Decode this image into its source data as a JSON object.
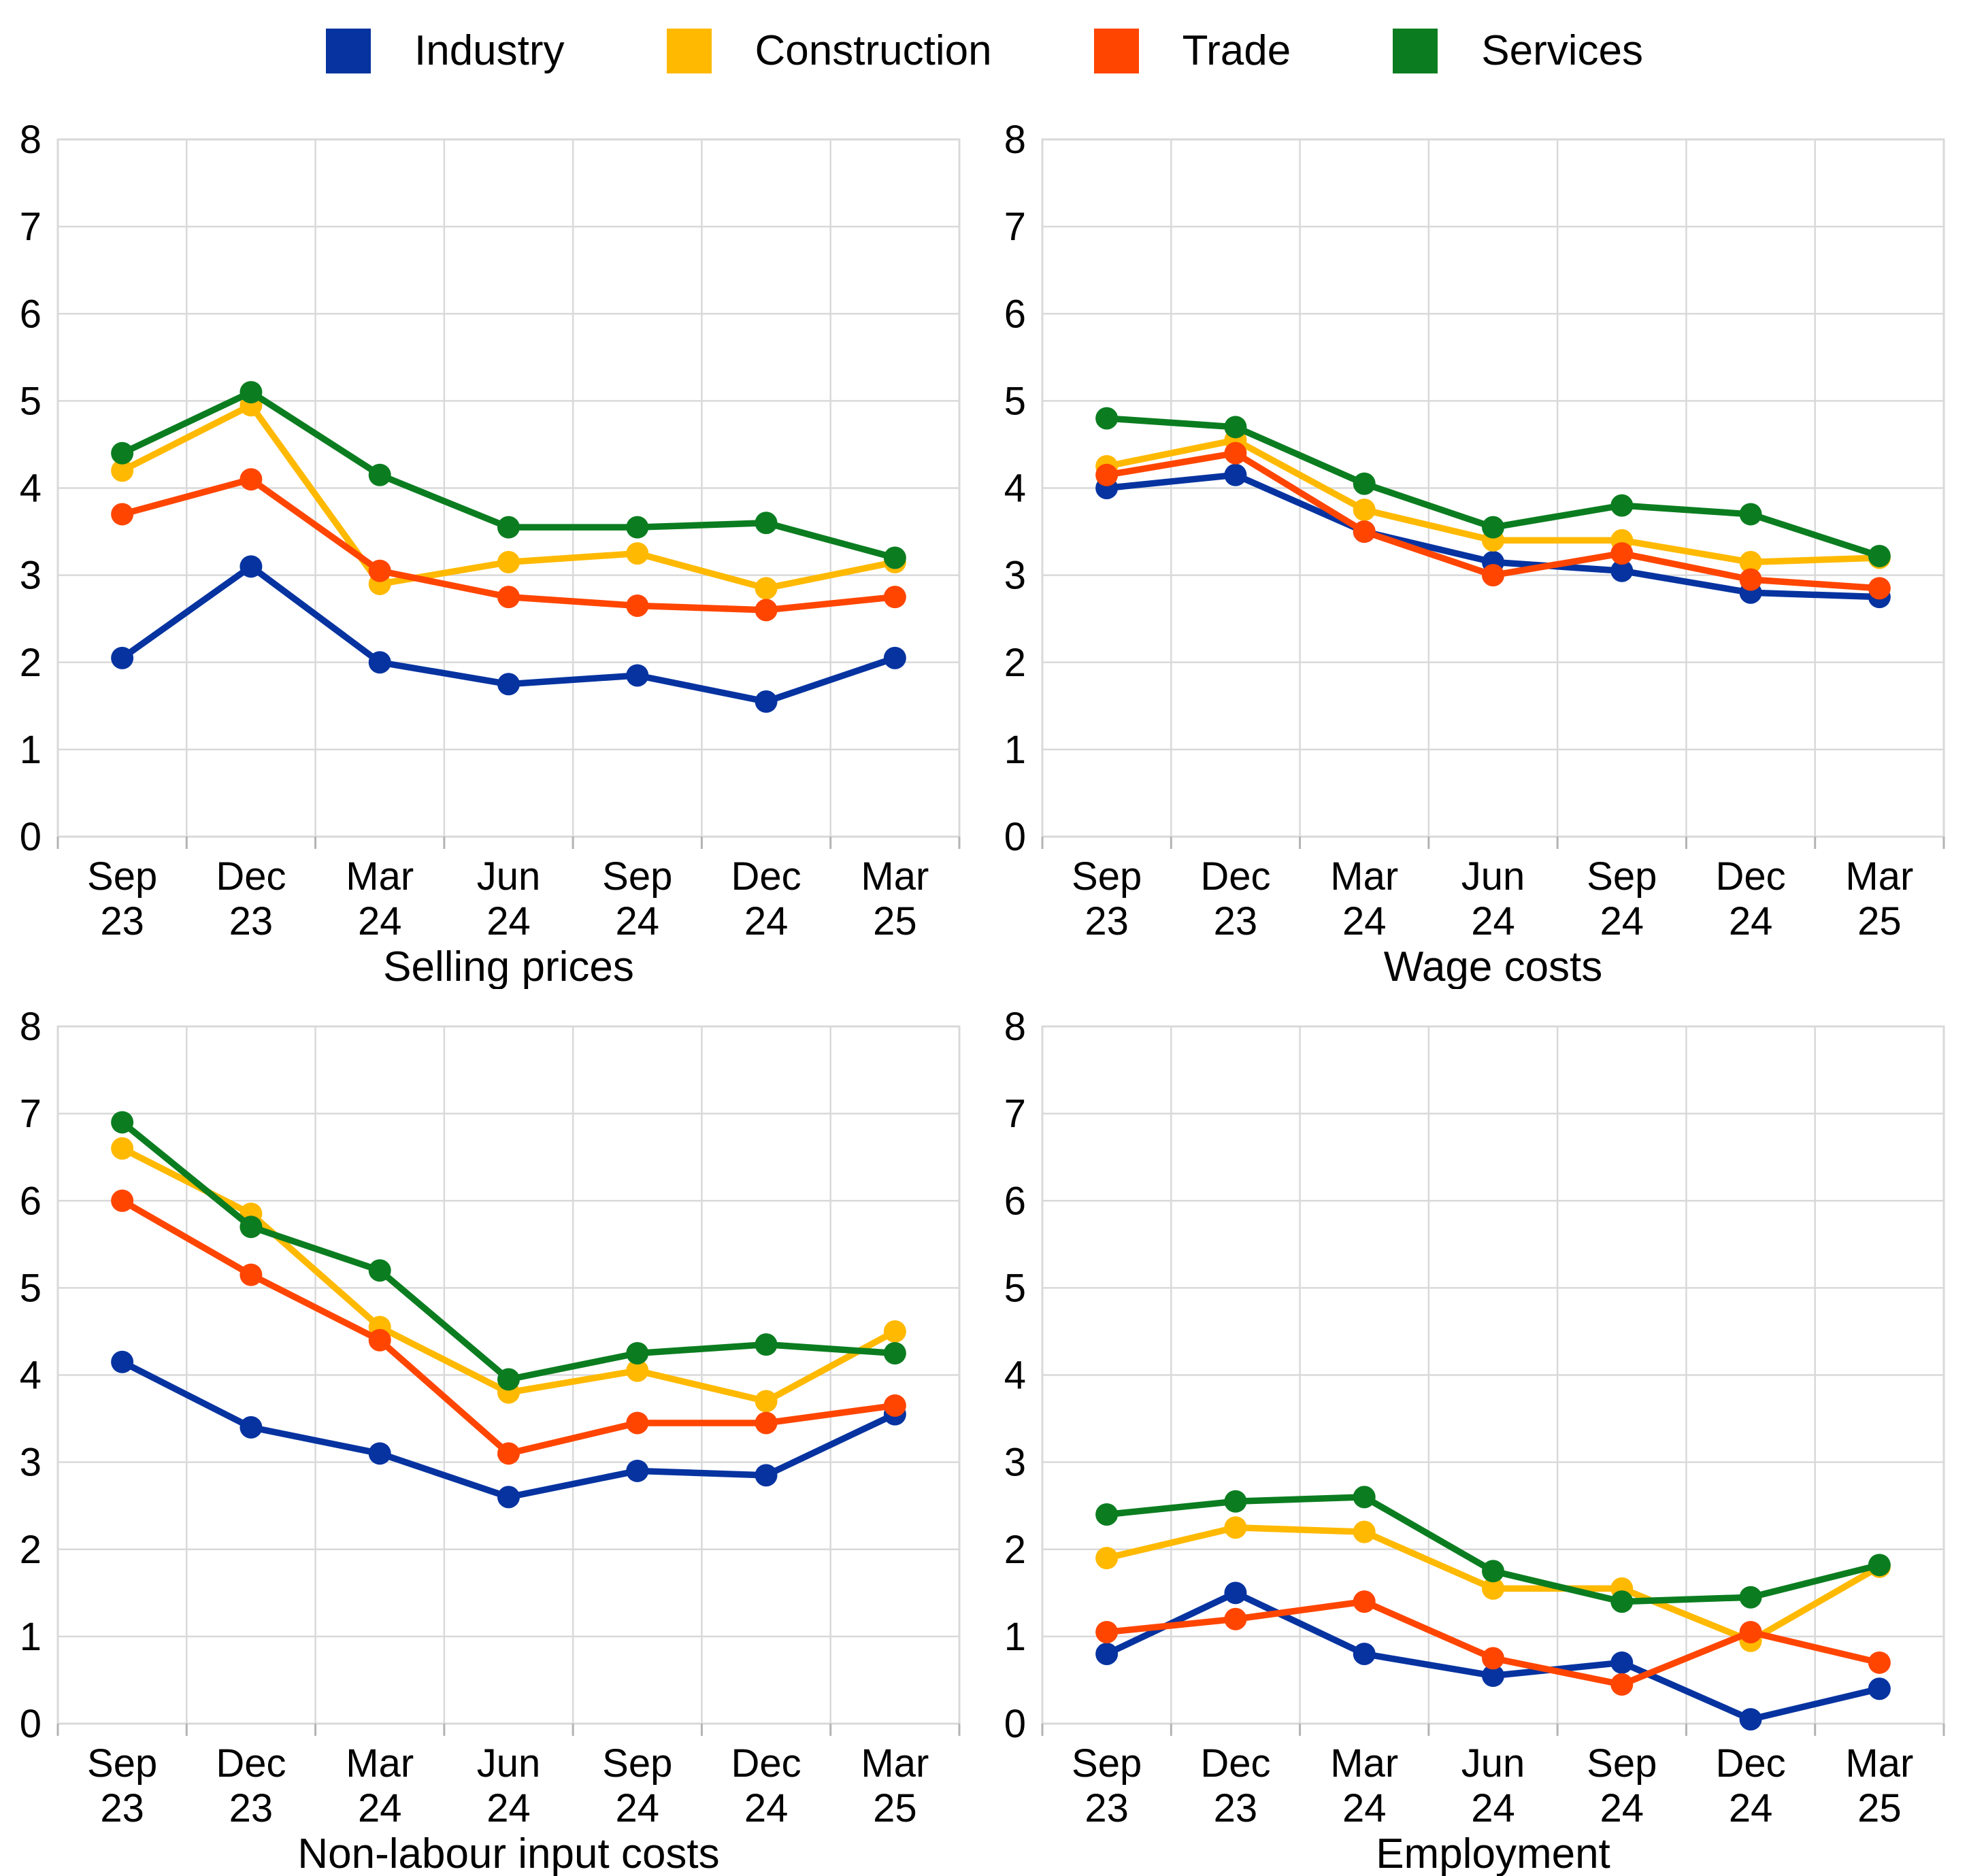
{
  "legend": {
    "items": [
      {
        "label": "Industry",
        "color": "#0633A0"
      },
      {
        "label": "Construction",
        "color": "#FFB900"
      },
      {
        "label": "Trade",
        "color": "#FF4500"
      },
      {
        "label": "Services",
        "color": "#0B7D20"
      }
    ]
  },
  "colors": {
    "background": "#ffffff",
    "grid": "#d9d9d9",
    "axis_tick": "#b3b3b3",
    "text": "#000000"
  },
  "chart_data": [
    {
      "type": "line",
      "title": "Selling prices",
      "categories": [
        "Sep 23",
        "Dec 23",
        "Mar 24",
        "Jun 24",
        "Sep 24",
        "Dec 24",
        "Mar 25"
      ],
      "ylim": [
        0,
        8
      ],
      "ytick_step": 1,
      "grid": true,
      "legend_position": "top-shared",
      "series": [
        {
          "name": "Industry",
          "values": [
            2.05,
            3.1,
            2.0,
            1.75,
            1.85,
            1.55,
            2.05
          ]
        },
        {
          "name": "Construction",
          "values": [
            4.2,
            4.95,
            2.9,
            3.15,
            3.25,
            2.85,
            3.15
          ]
        },
        {
          "name": "Trade",
          "values": [
            3.7,
            4.1,
            3.05,
            2.75,
            2.65,
            2.6,
            2.75
          ]
        },
        {
          "name": "Services",
          "values": [
            4.4,
            5.1,
            4.15,
            3.55,
            3.55,
            3.6,
            3.2
          ]
        }
      ]
    },
    {
      "type": "line",
      "title": "Wage costs",
      "categories": [
        "Sep 23",
        "Dec 23",
        "Mar 24",
        "Jun 24",
        "Sep 24",
        "Dec 24",
        "Mar 25"
      ],
      "ylim": [
        0,
        8
      ],
      "ytick_step": 1,
      "grid": true,
      "legend_position": "top-shared",
      "series": [
        {
          "name": "Industry",
          "values": [
            4.0,
            4.15,
            3.5,
            3.15,
            3.05,
            2.8,
            2.75
          ]
        },
        {
          "name": "Construction",
          "values": [
            4.25,
            4.55,
            3.75,
            3.4,
            3.4,
            3.15,
            3.2
          ]
        },
        {
          "name": "Trade",
          "values": [
            4.15,
            4.4,
            3.5,
            3.0,
            3.25,
            2.95,
            2.85
          ]
        },
        {
          "name": "Services",
          "values": [
            4.8,
            4.7,
            4.05,
            3.55,
            3.8,
            3.7,
            3.22
          ]
        }
      ]
    },
    {
      "type": "line",
      "title": "Non-labour input costs",
      "categories": [
        "Sep 23",
        "Dec 23",
        "Mar 24",
        "Jun 24",
        "Sep 24",
        "Dec 24",
        "Mar 25"
      ],
      "ylim": [
        0,
        8
      ],
      "ytick_step": 1,
      "grid": true,
      "legend_position": "top-shared",
      "series": [
        {
          "name": "Industry",
          "values": [
            4.15,
            3.4,
            3.1,
            2.6,
            2.9,
            2.85,
            3.55
          ]
        },
        {
          "name": "Construction",
          "values": [
            6.6,
            5.85,
            4.55,
            3.8,
            4.05,
            3.7,
            4.5
          ]
        },
        {
          "name": "Trade",
          "values": [
            6.0,
            5.15,
            4.4,
            3.1,
            3.45,
            3.45,
            3.65
          ]
        },
        {
          "name": "Services",
          "values": [
            6.9,
            5.7,
            5.2,
            3.95,
            4.25,
            4.35,
            4.25
          ]
        }
      ]
    },
    {
      "type": "line",
      "title": "Employment",
      "categories": [
        "Sep 23",
        "Dec 23",
        "Mar 24",
        "Jun 24",
        "Sep 24",
        "Dec 24",
        "Mar 25"
      ],
      "ylim": [
        0,
        8
      ],
      "ytick_step": 1,
      "grid": true,
      "legend_position": "top-shared",
      "series": [
        {
          "name": "Industry",
          "values": [
            0.8,
            1.5,
            0.8,
            0.55,
            0.7,
            0.05,
            0.4
          ]
        },
        {
          "name": "Construction",
          "values": [
            1.9,
            2.25,
            2.2,
            1.55,
            1.55,
            0.95,
            1.8
          ]
        },
        {
          "name": "Trade",
          "values": [
            1.05,
            1.2,
            1.4,
            0.75,
            0.45,
            1.05,
            0.7
          ]
        },
        {
          "name": "Services",
          "values": [
            2.4,
            2.55,
            2.6,
            1.75,
            1.4,
            1.45,
            1.82
          ]
        }
      ]
    }
  ]
}
